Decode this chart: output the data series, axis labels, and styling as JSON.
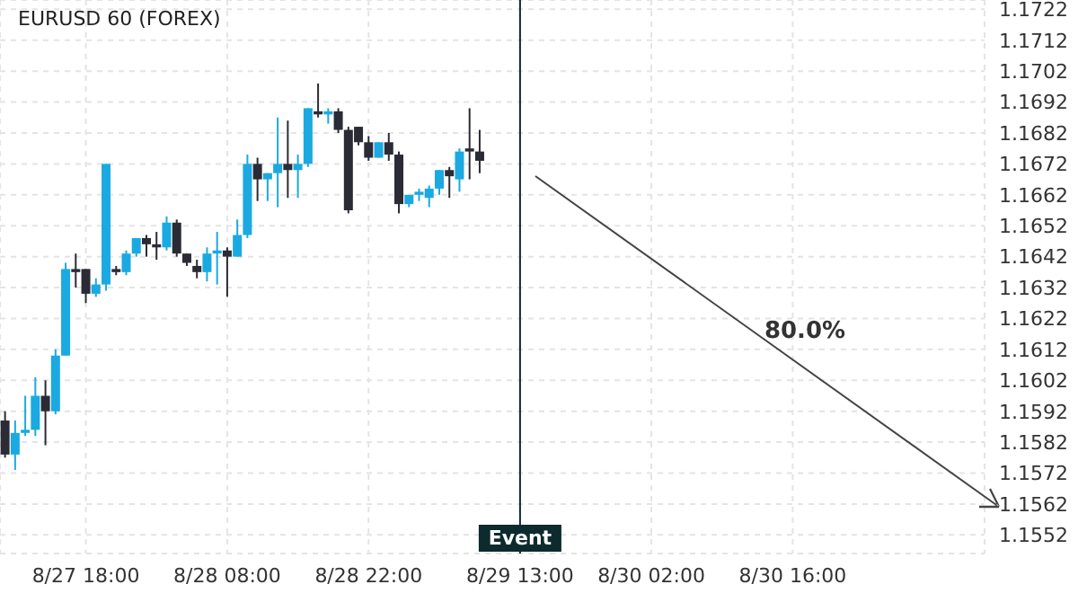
{
  "chart_data": {
    "type": "candlestick",
    "title": "EURUSD 60 (FOREX)",
    "x": [
      "--08-27T10:00",
      "--08-27T11:00",
      "--08-27T12:00",
      "--08-27T13:00",
      "--08-27T14:00",
      "--08-27T15:00",
      "--08-27T16:00",
      "--08-27T17:00",
      "--08-27T18:00",
      "--08-27T19:00",
      "--08-27T20:00",
      "--08-27T21:00",
      "--08-27T22:00",
      "--08-27T23:00",
      "--08-28T00:00",
      "--08-28T01:00",
      "--08-28T02:00",
      "--08-28T03:00",
      "--08-28T04:00",
      "--08-28T05:00",
      "--08-28T06:00",
      "--08-28T07:00",
      "--08-28T08:00",
      "--08-28T09:00",
      "--08-28T10:00",
      "--08-28T11:00",
      "--08-28T12:00",
      "--08-28T13:00",
      "--08-28T14:00",
      "--08-28T15:00",
      "--08-28T16:00",
      "--08-28T17:00",
      "--08-28T18:00",
      "--08-28T19:00",
      "--08-28T20:00",
      "--08-28T21:00",
      "--08-28T22:00",
      "--08-28T23:00",
      "--08-29T00:00",
      "--08-29T01:00",
      "--08-29T02:00",
      "--08-29T03:00",
      "--08-29T04:00",
      "--08-29T05:00",
      "--08-29T06:00",
      "--08-29T07:00",
      "--08-29T08:00",
      "--08-29T09:00"
    ],
    "ohlc": [
      [
        1.1589,
        1.1592,
        1.1577,
        1.1578
      ],
      [
        1.1578,
        1.1589,
        1.1573,
        1.1585
      ],
      [
        1.1585,
        1.1597,
        1.1584,
        1.1586
      ],
      [
        1.1586,
        1.1603,
        1.1584,
        1.1597
      ],
      [
        1.1597,
        1.1602,
        1.1581,
        1.1592
      ],
      [
        1.1592,
        1.1612,
        1.1591,
        1.161
      ],
      [
        1.161,
        1.164,
        1.161,
        1.1638
      ],
      [
        1.1638,
        1.1643,
        1.1632,
        1.1637
      ],
      [
        1.1638,
        1.1638,
        1.1627,
        1.163
      ],
      [
        1.163,
        1.1635,
        1.1629,
        1.1633
      ],
      [
        1.1633,
        1.1672,
        1.1631,
        1.1672
      ],
      [
        1.1638,
        1.1639,
        1.1636,
        1.1637
      ],
      [
        1.1637,
        1.1644,
        1.1636,
        1.1643
      ],
      [
        1.1643,
        1.1648,
        1.1642,
        1.1648
      ],
      [
        1.1648,
        1.1649,
        1.1642,
        1.1646
      ],
      [
        1.1646,
        1.165,
        1.1641,
        1.1645
      ],
      [
        1.1645,
        1.1655,
        1.1644,
        1.1653
      ],
      [
        1.1653,
        1.1654,
        1.1642,
        1.1643
      ],
      [
        1.1643,
        1.1643,
        1.1639,
        1.164
      ],
      [
        1.1639,
        1.1641,
        1.1635,
        1.1637
      ],
      [
        1.1637,
        1.1645,
        1.1634,
        1.1643
      ],
      [
        1.1643,
        1.165,
        1.1633,
        1.1644
      ],
      [
        1.1644,
        1.1645,
        1.1629,
        1.1642
      ],
      [
        1.1642,
        1.1654,
        1.1642,
        1.1649
      ],
      [
        1.1649,
        1.1675,
        1.1648,
        1.1672
      ],
      [
        1.1672,
        1.1674,
        1.166,
        1.1667
      ],
      [
        1.1667,
        1.1669,
        1.166,
        1.1669
      ],
      [
        1.1669,
        1.1687,
        1.1658,
        1.1672
      ],
      [
        1.1672,
        1.1686,
        1.1661,
        1.167
      ],
      [
        1.167,
        1.1675,
        1.1661,
        1.1672
      ],
      [
        1.1672,
        1.169,
        1.1671,
        1.169
      ],
      [
        1.1689,
        1.1698,
        1.1687,
        1.1688
      ],
      [
        1.1688,
        1.169,
        1.1685,
        1.1689
      ],
      [
        1.1689,
        1.169,
        1.1682,
        1.1683
      ],
      [
        1.1683,
        1.1684,
        1.1656,
        1.1657
      ],
      [
        1.1684,
        1.1684,
        1.1678,
        1.1679
      ],
      [
        1.1679,
        1.1681,
        1.1673,
        1.1674
      ],
      [
        1.1674,
        1.1679,
        1.1674,
        1.1679
      ],
      [
        1.1679,
        1.1682,
        1.1673,
        1.1675
      ],
      [
        1.1675,
        1.1676,
        1.1656,
        1.1659
      ],
      [
        1.1659,
        1.1662,
        1.1658,
        1.1662
      ],
      [
        1.1662,
        1.1664,
        1.166,
        1.1663
      ],
      [
        1.1661,
        1.1665,
        1.1658,
        1.1664
      ],
      [
        1.1664,
        1.167,
        1.1662,
        1.167
      ],
      [
        1.167,
        1.1671,
        1.1661,
        1.1668
      ],
      [
        1.1667,
        1.1677,
        1.1663,
        1.1676
      ],
      [
        1.1677,
        1.169,
        1.1667,
        1.1676
      ],
      [
        1.1676,
        1.1683,
        1.1669,
        1.1673
      ]
    ],
    "colors": [
      "#2b2b35",
      "#1ba9e1",
      "#1ba9e1",
      "#1ba9e1",
      "#2b2b35",
      "#1ba9e1",
      "#1ba9e1",
      "#2b2b35",
      "#2b2b35",
      "#1ba9e1",
      "#1ba9e1",
      "#2b2b35",
      "#1ba9e1",
      "#1ba9e1",
      "#2b2b35",
      "#2b2b35",
      "#1ba9e1",
      "#2b2b35",
      "#2b2b35",
      "#2b2b35",
      "#1ba9e1",
      "#1ba9e1",
      "#2b2b35",
      "#1ba9e1",
      "#1ba9e1",
      "#2b2b35",
      "#1ba9e1",
      "#1ba9e1",
      "#2b2b35",
      "#1ba9e1",
      "#1ba9e1",
      "#2b2b35",
      "#1ba9e1",
      "#2b2b35",
      "#2b2b35",
      "#2b2b35",
      "#2b2b35",
      "#1ba9e1",
      "#2b2b35",
      "#2b2b35",
      "#1ba9e1",
      "#1ba9e1",
      "#1ba9e1",
      "#1ba9e1",
      "#2b2b35",
      "#1ba9e1",
      "#2b2b35",
      "#2b2b35"
    ],
    "xlim": [
      "--08-27T09:30",
      "--08-31T11:00"
    ],
    "xticks": [
      {
        "value": "--08-27T18:00",
        "label": "8/27 18:00"
      },
      {
        "value": "--08-28T08:00",
        "label": "8/28 08:00"
      },
      {
        "value": "--08-28T22:00",
        "label": "8/28 22:00"
      },
      {
        "value": "--08-29T13:00",
        "label": "8/29 13:00"
      },
      {
        "value": "--08-30T02:00",
        "label": "8/30 02:00"
      },
      {
        "value": "--08-30T16:00",
        "label": "8/30 16:00"
      }
    ],
    "ylim": [
      1.1546,
      1.1725
    ],
    "yticks": [
      1.1552,
      1.1562,
      1.1572,
      1.1582,
      1.1592,
      1.1602,
      1.1612,
      1.1622,
      1.1632,
      1.1642,
      1.1652,
      1.1662,
      1.1672,
      1.1682,
      1.1692,
      1.1702,
      1.1712,
      1.1722
    ],
    "ref_lines": [
      {
        "axis": "x",
        "value": "--08-29T13:00",
        "label": "Event",
        "color": "#0d2b2e"
      }
    ],
    "annotations": [
      "80.0%"
    ],
    "grid": true
  }
}
